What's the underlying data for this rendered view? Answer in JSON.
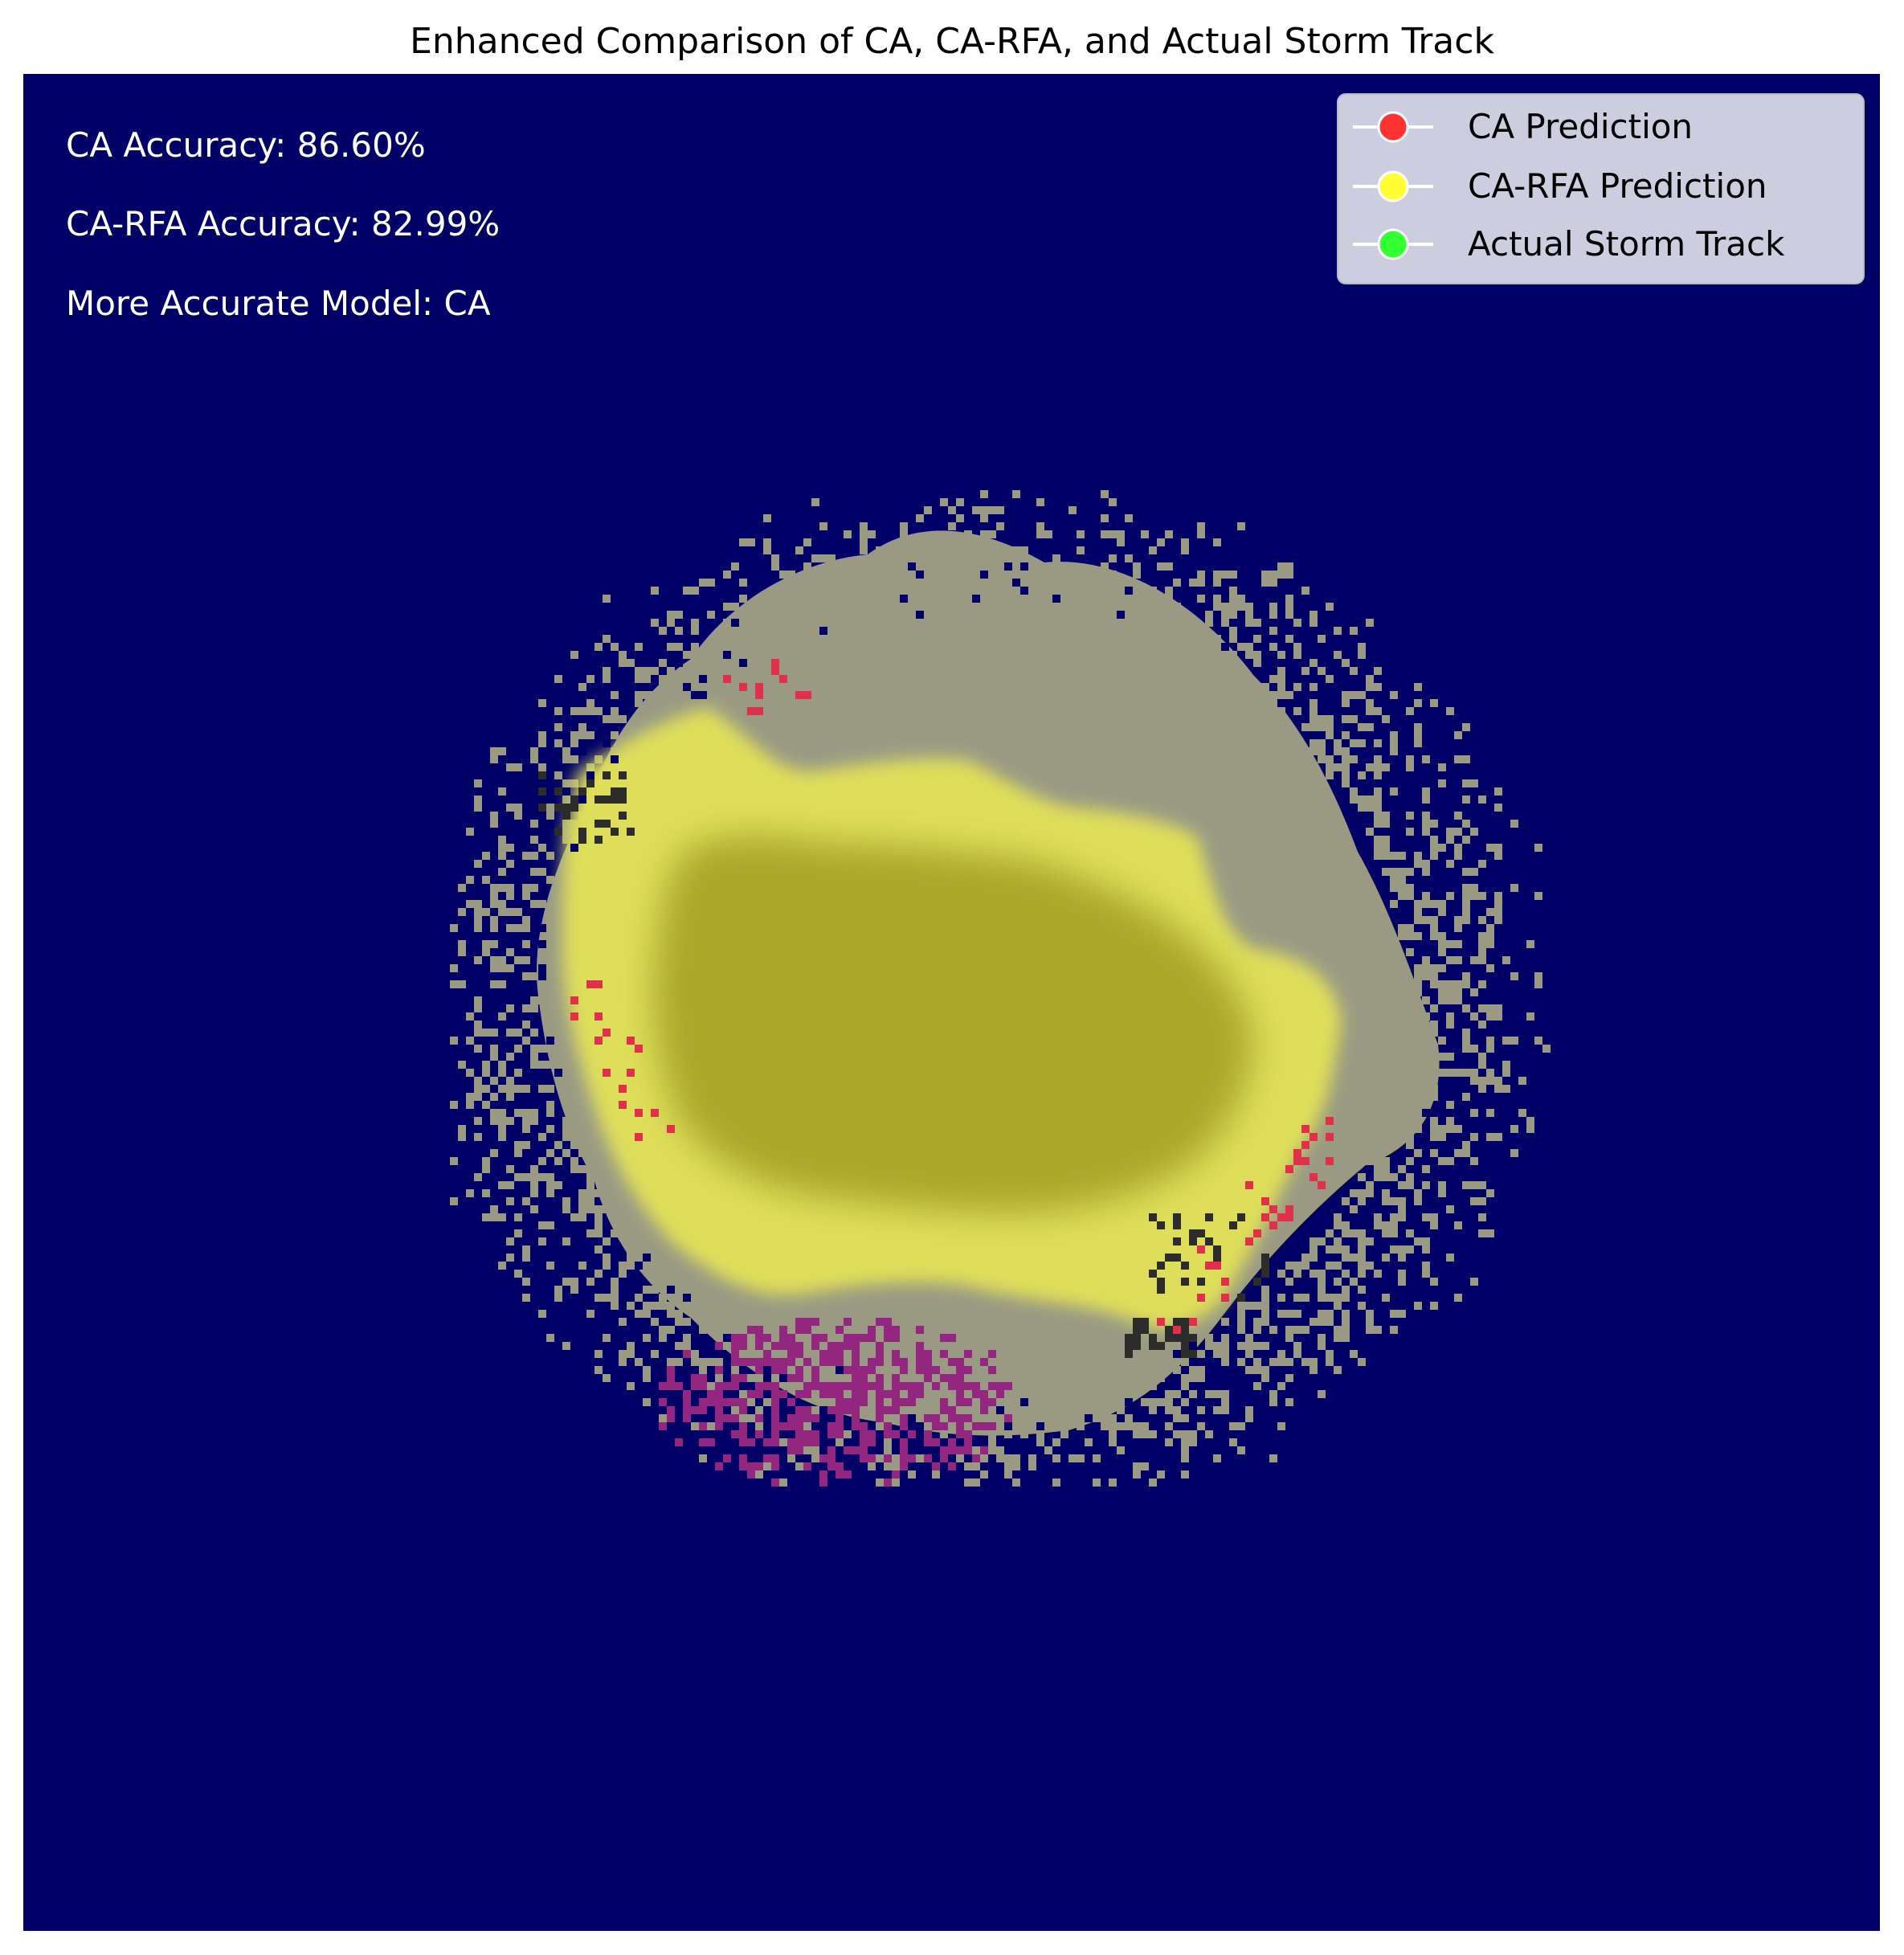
{
  "chart_data": {
    "type": "heatmap",
    "title": "Enhanced Comparison of CA, CA-RFA, and Actual Storm Track",
    "xlabel": "",
    "ylabel": "",
    "axes_visible": false,
    "grid": false,
    "legend_placement": "top-right",
    "background_color": "#000066",
    "annotations": [
      "CA Accuracy: 86.60%",
      "CA-RFA Accuracy: 82.99%",
      "More Accurate Model: CA"
    ],
    "legend": [
      {
        "label": "CA Prediction",
        "color": "#ff3333"
      },
      {
        "label": "CA-RFA Prediction",
        "color": "#ffff33"
      },
      {
        "label": "Actual Storm Track",
        "color": "#33ff33"
      }
    ],
    "layer_colors": {
      "outer_gray": "#9a9a84",
      "rfa_yellow": "#dede5a",
      "core_olive": "#aaa82c",
      "ca_only_magenta": "#93277f",
      "ca_red_speckle": "#e0304a",
      "dark_speckle": "#2c2c2a"
    },
    "accuracy": {
      "CA": 86.6,
      "CA-RFA": 82.99,
      "more_accurate_model": "CA"
    }
  }
}
